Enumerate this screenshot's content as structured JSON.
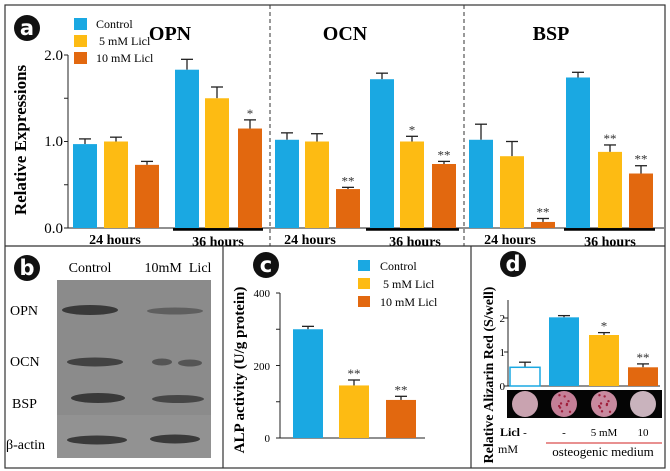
{
  "colors": {
    "control": "#1aa8e2",
    "licl_5": "#fdbb13",
    "licl_10": "#e2680f",
    "untreated_outline": "#1aa8e2"
  },
  "panel_labels": {
    "a": "a",
    "b": "b",
    "c": "c",
    "d": "d"
  },
  "legend": [
    "Control",
    "5 mM Licl",
    "10 mM Licl"
  ],
  "chart_data": [
    {
      "panel": "a",
      "type": "bar",
      "ylabel": "Relative Expressions",
      "ylim": [
        0,
        2.0
      ],
      "yticks": [
        "0.0",
        "1.0",
        "2.0"
      ],
      "legend_placement": "top-left",
      "series_names": [
        "Control",
        "5 mM Licl",
        "10 mM Licl"
      ],
      "groups": [
        {
          "title": "OPN",
          "timepoints": [
            {
              "label": "24 hours",
              "values": [
                0.97,
                1.0,
                0.73
              ],
              "errors": [
                0.06,
                0.05,
                0.04
              ],
              "sig": [
                "",
                "",
                ""
              ]
            },
            {
              "label": "36 hours",
              "values": [
                1.83,
                1.5,
                1.15
              ],
              "errors": [
                0.12,
                0.13,
                0.1
              ],
              "sig": [
                "",
                "",
                "*"
              ]
            }
          ]
        },
        {
          "title": "OCN",
          "timepoints": [
            {
              "label": "24 hours",
              "values": [
                1.02,
                1.0,
                0.45
              ],
              "errors": [
                0.08,
                0.09,
                0.02
              ],
              "sig": [
                "",
                "",
                "**"
              ]
            },
            {
              "label": "36 hours",
              "values": [
                1.72,
                1.0,
                0.74
              ],
              "errors": [
                0.07,
                0.06,
                0.03
              ],
              "sig": [
                "",
                "*",
                "**"
              ]
            }
          ]
        },
        {
          "title": "BSP",
          "timepoints": [
            {
              "label": "24 hours",
              "values": [
                1.02,
                0.83,
                0.07
              ],
              "errors": [
                0.18,
                0.17,
                0.04
              ],
              "sig": [
                "",
                "",
                "**"
              ]
            },
            {
              "label": "36 hours",
              "values": [
                1.74,
                0.88,
                0.63
              ],
              "errors": [
                0.06,
                0.08,
                0.09
              ],
              "sig": [
                "",
                "**",
                "**"
              ]
            }
          ]
        }
      ]
    },
    {
      "panel": "c",
      "type": "bar",
      "ylabel": "ALP activity (U/g protein)",
      "ylim": [
        0,
        400
      ],
      "yticks": [
        "0",
        "200",
        "400"
      ],
      "legend_placement": "top-right",
      "categories": [
        "Control",
        "5 mM Licl",
        "10 mM Licl"
      ],
      "values": [
        300,
        145,
        105
      ],
      "errors": [
        8,
        15,
        10
      ],
      "sig": [
        "",
        "**",
        "**"
      ]
    },
    {
      "panel": "d",
      "type": "bar",
      "ylabel": "Relative Alizarin Red (S/well)",
      "ylim": [
        0,
        2.5
      ],
      "yticks": [
        "0",
        "1",
        "2"
      ],
      "categories": [
        "-",
        "-",
        "5 mM",
        "10"
      ],
      "values": [
        0.55,
        2.02,
        1.5,
        0.55
      ],
      "errors": [
        0.15,
        0.05,
        0.07,
        0.1
      ],
      "sig": [
        "",
        "",
        "*",
        "**"
      ],
      "row_label": "Licl",
      "row_label_unit": "mM",
      "group_label": "osteogenic medium"
    }
  ],
  "blot": {
    "columns": [
      "Control",
      "10mM  Licl"
    ],
    "rows": [
      "OPN",
      "OCN",
      "BSP",
      "β-actin"
    ]
  }
}
